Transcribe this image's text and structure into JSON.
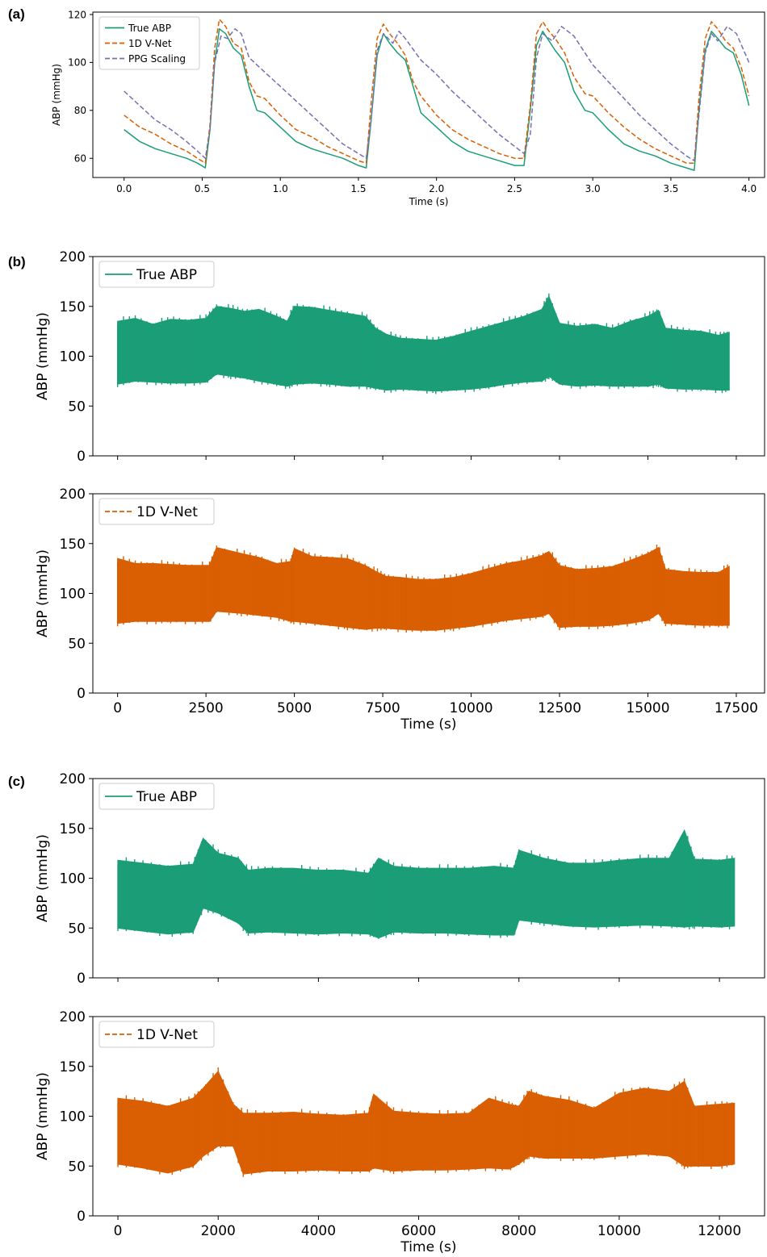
{
  "colors": {
    "true_abp": "#1b9e77",
    "vnet": "#d95f02",
    "ppg": "#7570b3"
  },
  "panel_labels": [
    "(a)",
    "(b)",
    "(c)"
  ],
  "chart_data": [
    {
      "id": "a",
      "type": "line",
      "xlabel": "Time (s)",
      "ylabel": "ABP (mmHg)",
      "xlim": [
        -0.2,
        4.1
      ],
      "ylim": [
        52,
        121
      ],
      "xticks": [
        0.0,
        0.5,
        1.0,
        1.5,
        2.0,
        2.5,
        3.0,
        3.5,
        4.0
      ],
      "xtick_labels": [
        "0.0",
        "0.5",
        "1.0",
        "1.5",
        "2.0",
        "2.5",
        "3.0",
        "3.5",
        "4.0"
      ],
      "yticks": [
        60,
        80,
        100,
        120
      ],
      "ytick_labels": [
        "60",
        "80",
        "100",
        "120"
      ],
      "legend": "top-left",
      "series": [
        {
          "name": "True ABP",
          "style": "solid",
          "x": [
            0.0,
            0.1,
            0.2,
            0.3,
            0.4,
            0.47,
            0.52,
            0.55,
            0.58,
            0.61,
            0.65,
            0.7,
            0.75,
            0.8,
            0.85,
            0.9,
            1.0,
            1.1,
            1.2,
            1.3,
            1.4,
            1.5,
            1.55,
            1.58,
            1.62,
            1.66,
            1.7,
            1.75,
            1.8,
            1.85,
            1.9,
            2.0,
            2.1,
            2.2,
            2.3,
            2.4,
            2.5,
            2.56,
            2.6,
            2.64,
            2.68,
            2.72,
            2.76,
            2.82,
            2.88,
            2.95,
            3.0,
            3.1,
            3.2,
            3.3,
            3.4,
            3.5,
            3.6,
            3.65,
            3.68,
            3.72,
            3.76,
            3.8,
            3.85,
            3.9,
            3.95,
            4.0
          ],
          "y": [
            72,
            67,
            64,
            62,
            60,
            58,
            56,
            72,
            100,
            114,
            112,
            106,
            103,
            90,
            80,
            79,
            73,
            67,
            64,
            62,
            60,
            57,
            56,
            75,
            103,
            112,
            108,
            104,
            101,
            90,
            79,
            73,
            67,
            63,
            61,
            59,
            57,
            57,
            80,
            107,
            113,
            109,
            105,
            100,
            88,
            80,
            79,
            72,
            66,
            63,
            61,
            58,
            56,
            55,
            80,
            105,
            113,
            110,
            106,
            104,
            95,
            82
          ]
        },
        {
          "name": "1D V-Net",
          "style": "dashed",
          "x": [
            0.0,
            0.1,
            0.2,
            0.3,
            0.4,
            0.47,
            0.52,
            0.55,
            0.58,
            0.61,
            0.65,
            0.7,
            0.75,
            0.8,
            0.85,
            0.9,
            1.0,
            1.1,
            1.2,
            1.3,
            1.4,
            1.5,
            1.55,
            1.58,
            1.62,
            1.66,
            1.7,
            1.75,
            1.8,
            1.85,
            1.9,
            2.0,
            2.1,
            2.2,
            2.3,
            2.4,
            2.5,
            2.56,
            2.6,
            2.64,
            2.68,
            2.72,
            2.76,
            2.82,
            2.88,
            2.95,
            3.0,
            3.1,
            3.2,
            3.3,
            3.4,
            3.5,
            3.6,
            3.65,
            3.68,
            3.72,
            3.76,
            3.8,
            3.85,
            3.9,
            3.95,
            4.0
          ],
          "y": [
            78,
            73,
            70,
            66,
            63,
            60,
            58,
            74,
            106,
            118,
            115,
            108,
            106,
            92,
            86,
            85,
            78,
            72,
            69,
            65,
            62,
            59,
            58,
            82,
            110,
            116,
            112,
            108,
            103,
            92,
            86,
            78,
            72,
            68,
            65,
            62,
            60,
            60,
            82,
            112,
            117,
            113,
            110,
            104,
            94,
            87,
            86,
            79,
            73,
            68,
            64,
            61,
            58,
            58,
            85,
            110,
            117,
            114,
            109,
            106,
            98,
            86
          ]
        },
        {
          "name": "PPG Scaling",
          "style": "dashed",
          "x": [
            0.0,
            0.1,
            0.2,
            0.3,
            0.4,
            0.47,
            0.52,
            0.55,
            0.58,
            0.62,
            0.66,
            0.71,
            0.75,
            0.8,
            0.9,
            1.0,
            1.1,
            1.2,
            1.3,
            1.4,
            1.5,
            1.55,
            1.58,
            1.62,
            1.66,
            1.72,
            1.76,
            1.8,
            1.9,
            2.0,
            2.1,
            2.2,
            2.3,
            2.4,
            2.5,
            2.56,
            2.6,
            2.64,
            2.68,
            2.74,
            2.8,
            2.88,
            3.0,
            3.1,
            3.2,
            3.3,
            3.4,
            3.5,
            3.6,
            3.65,
            3.68,
            3.72,
            3.76,
            3.8,
            3.86,
            3.92,
            4.0
          ],
          "y": [
            88,
            82,
            76,
            72,
            67,
            63,
            60,
            72,
            100,
            111,
            110,
            114,
            112,
            102,
            96,
            90,
            84,
            78,
            72,
            66,
            62,
            60,
            75,
            105,
            112,
            108,
            113,
            110,
            101,
            95,
            88,
            82,
            76,
            70,
            65,
            62,
            70,
            102,
            112,
            109,
            115,
            111,
            99,
            92,
            85,
            78,
            72,
            66,
            61,
            59,
            78,
            104,
            112,
            109,
            115,
            112,
            100
          ]
        }
      ]
    },
    {
      "id": "b-top",
      "type": "area",
      "xlabel": "",
      "ylabel": "ABP (mmHg)",
      "xlim": [
        -700,
        18300
      ],
      "ylim": [
        0,
        200
      ],
      "xticks": [
        0,
        2500,
        5000,
        7500,
        10000,
        12500,
        15000,
        17500
      ],
      "xtick_labels": [],
      "yticks": [
        0,
        50,
        100,
        150,
        200
      ],
      "ytick_labels": [
        "0",
        "50",
        "100",
        "150",
        "200"
      ],
      "legend": "top-left",
      "series": [
        {
          "name": "True ABP",
          "style": "solid",
          "x": [
            0,
            500,
            1000,
            1500,
            2000,
            2500,
            2800,
            3200,
            3600,
            4000,
            4500,
            4800,
            5000,
            5500,
            6000,
            6500,
            7000,
            7300,
            7600,
            8000,
            8500,
            9000,
            9500,
            10000,
            10500,
            11000,
            11500,
            12000,
            12200,
            12500,
            13000,
            13500,
            14000,
            14500,
            15000,
            15300,
            15500,
            16000,
            16500,
            17000,
            17300
          ],
          "upper": [
            135,
            138,
            132,
            137,
            136,
            138,
            150,
            148,
            145,
            147,
            140,
            135,
            150,
            149,
            146,
            143,
            140,
            128,
            122,
            118,
            117,
            116,
            120,
            125,
            130,
            135,
            140,
            147,
            160,
            133,
            130,
            132,
            128,
            135,
            140,
            146,
            128,
            126,
            125,
            121,
            124
          ],
          "lower": [
            72,
            75,
            74,
            73,
            73,
            74,
            82,
            80,
            78,
            75,
            72,
            70,
            72,
            73,
            72,
            70,
            70,
            68,
            66,
            67,
            66,
            65,
            66,
            67,
            69,
            72,
            74,
            75,
            80,
            72,
            70,
            71,
            70,
            70,
            70,
            72,
            68,
            67,
            67,
            66,
            66
          ]
        }
      ]
    },
    {
      "id": "b-bottom",
      "type": "area",
      "xlabel": "Time (s)",
      "ylabel": "ABP (mmHg)",
      "xlim": [
        -700,
        18300
      ],
      "ylim": [
        0,
        200
      ],
      "xticks": [
        0,
        2500,
        5000,
        7500,
        10000,
        12500,
        15000,
        17500
      ],
      "xtick_labels": [
        "0",
        "2500",
        "5000",
        "7500",
        "10000",
        "12500",
        "15000",
        "17500"
      ],
      "yticks": [
        0,
        50,
        100,
        150,
        200
      ],
      "ytick_labels": [
        "0",
        "50",
        "100",
        "150",
        "200"
      ],
      "legend": "top-left",
      "series": [
        {
          "name": "1D V-Net",
          "style": "dashed",
          "x": [
            0,
            500,
            1000,
            1500,
            2000,
            2600,
            2800,
            3500,
            4000,
            4500,
            4900,
            5000,
            5500,
            6000,
            6500,
            7000,
            7300,
            7600,
            8000,
            8500,
            9000,
            9500,
            10000,
            10500,
            11000,
            11500,
            12000,
            12200,
            12500,
            13000,
            13500,
            14000,
            14500,
            15000,
            15300,
            15500,
            16000,
            16500,
            17000,
            17300
          ],
          "upper": [
            135,
            130,
            130,
            129,
            128,
            128,
            146,
            140,
            136,
            130,
            132,
            145,
            137,
            136,
            135,
            128,
            122,
            117,
            116,
            114,
            114,
            116,
            120,
            125,
            130,
            133,
            138,
            142,
            128,
            124,
            125,
            127,
            133,
            140,
            146,
            124,
            122,
            121,
            121,
            127
          ],
          "lower": [
            70,
            72,
            72,
            72,
            72,
            72,
            82,
            80,
            78,
            76,
            72,
            72,
            70,
            68,
            66,
            64,
            65,
            65,
            64,
            63,
            63,
            65,
            67,
            70,
            73,
            75,
            77,
            80,
            66,
            67,
            67,
            68,
            70,
            73,
            80,
            70,
            69,
            68,
            68,
            68
          ]
        }
      ]
    },
    {
      "id": "c-top",
      "type": "area",
      "xlabel": "",
      "ylabel": "ABP (mmHg)",
      "xlim": [
        -500,
        12900
      ],
      "ylim": [
        0,
        200
      ],
      "xticks": [
        0,
        2000,
        4000,
        6000,
        8000,
        10000,
        12000
      ],
      "xtick_labels": [],
      "yticks": [
        0,
        50,
        100,
        150,
        200
      ],
      "ytick_labels": [
        "0",
        "50",
        "100",
        "150",
        "200"
      ],
      "legend": "top-left",
      "series": [
        {
          "name": "True ABP",
          "style": "solid",
          "x": [
            0,
            500,
            1000,
            1500,
            1700,
            2000,
            2400,
            2600,
            3000,
            3500,
            4000,
            4500,
            5000,
            5200,
            5500,
            6000,
            6500,
            7000,
            7500,
            7900,
            8000,
            8500,
            9000,
            9500,
            10000,
            10500,
            11000,
            11300,
            11500,
            12000,
            12300
          ],
          "upper": [
            118,
            115,
            112,
            114,
            140,
            125,
            120,
            108,
            110,
            110,
            108,
            108,
            105,
            120,
            112,
            110,
            110,
            110,
            112,
            110,
            128,
            120,
            115,
            115,
            118,
            120,
            120,
            148,
            119,
            118,
            120
          ],
          "lower": [
            50,
            47,
            44,
            46,
            70,
            65,
            55,
            45,
            46,
            45,
            44,
            45,
            44,
            40,
            46,
            45,
            45,
            44,
            43,
            43,
            58,
            55,
            52,
            51,
            52,
            53,
            52,
            51,
            52,
            51,
            52
          ]
        }
      ]
    },
    {
      "id": "c-bottom",
      "type": "area",
      "xlabel": "Time (s)",
      "ylabel": "ABP (mmHg)",
      "xlim": [
        -500,
        12900
      ],
      "ylim": [
        0,
        200
      ],
      "xticks": [
        0,
        2000,
        4000,
        6000,
        8000,
        10000,
        12000
      ],
      "xtick_labels": [
        "0",
        "2000",
        "4000",
        "6000",
        "8000",
        "10000",
        "12000"
      ],
      "yticks": [
        0,
        50,
        100,
        150,
        200
      ],
      "ytick_labels": [
        "0",
        "50",
        "100",
        "150",
        "200"
      ],
      "legend": "top-left",
      "series": [
        {
          "name": "1D V-Net",
          "style": "dashed",
          "x": [
            0,
            500,
            1000,
            1500,
            1700,
            2000,
            2300,
            2500,
            3000,
            3500,
            4000,
            4500,
            5000,
            5100,
            5500,
            6000,
            6500,
            7000,
            7400,
            7800,
            8000,
            8200,
            8500,
            9000,
            9500,
            10000,
            10500,
            11000,
            11300,
            11500,
            12000,
            12300
          ],
          "upper": [
            118,
            115,
            110,
            118,
            128,
            145,
            112,
            103,
            103,
            104,
            102,
            101,
            103,
            122,
            105,
            103,
            102,
            103,
            118,
            112,
            110,
            125,
            120,
            116,
            108,
            123,
            128,
            125,
            135,
            110,
            112,
            113
          ],
          "lower": [
            52,
            48,
            43,
            50,
            60,
            70,
            70,
            42,
            45,
            45,
            46,
            45,
            45,
            48,
            45,
            46,
            46,
            47,
            48,
            47,
            52,
            60,
            58,
            58,
            58,
            60,
            62,
            60,
            50,
            50,
            50,
            52
          ]
        }
      ]
    }
  ]
}
